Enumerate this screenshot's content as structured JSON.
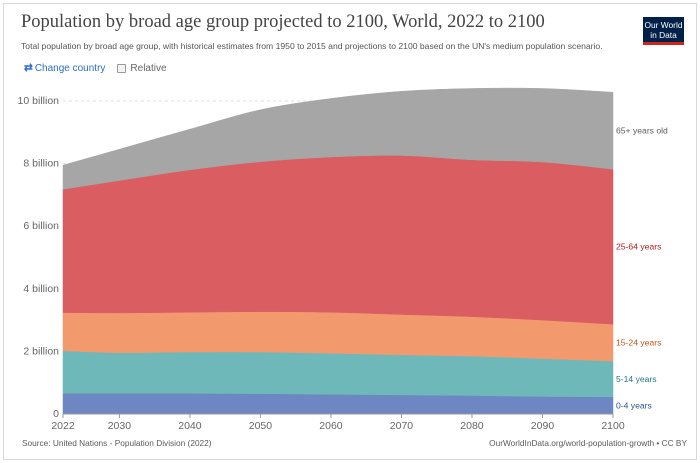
{
  "header": {
    "title": "Population by broad age group projected to 2100, World, 2022 to 2100",
    "subtitle": "Total population by broad age group, with historical estimates from 1950 to 2015 and projections to 2100 based on the UN's medium population scenario.",
    "logo_line1": "Our World",
    "logo_line2": "in Data"
  },
  "controls": {
    "change_country_label": "Change country",
    "relative_label": "Relative"
  },
  "footer": {
    "source": "Source: United Nations - Population Division (2022)",
    "link": "OurWorldInData.org/world-population-growth • CC BY"
  },
  "colors": {
    "0-4": "#6d87c2",
    "5-14": "#6fb8ba",
    "15-24": "#f29a6e",
    "25-64": "#d95d61",
    "65+": "#a6a6a6",
    "label_0_4": "#2d4e98",
    "label_5_14": "#20787f",
    "label_15_24": "#c4551a",
    "label_25_64": "#b11c1f",
    "label_65": "#5b5b5b"
  },
  "chart_data": {
    "type": "area",
    "stacked": true,
    "x": [
      2022,
      2030,
      2040,
      2050,
      2060,
      2070,
      2080,
      2090,
      2100
    ],
    "xticks": [
      2022,
      2030,
      2040,
      2050,
      2060,
      2070,
      2080,
      2090,
      2100
    ],
    "xtick_labels": [
      "2022",
      "2030",
      "2040",
      "2050",
      "2060",
      "2070",
      "2080",
      "2090",
      "2100"
    ],
    "yticks": [
      0,
      2,
      4,
      6,
      8,
      10
    ],
    "ytick_labels": [
      "0",
      "2 billion",
      "4 billion",
      "6 billion",
      "8 billion",
      "10 billion"
    ],
    "ylim": [
      0,
      10.3
    ],
    "ylabel_unit": "billion",
    "series": [
      {
        "name": "0-4 years",
        "key": "0-4",
        "values": [
          0.66,
          0.66,
          0.66,
          0.65,
          0.63,
          0.61,
          0.59,
          0.56,
          0.55
        ]
      },
      {
        "name": "5-14 years",
        "key": "5-14",
        "values": [
          1.36,
          1.3,
          1.32,
          1.33,
          1.31,
          1.28,
          1.26,
          1.21,
          1.14
        ]
      },
      {
        "name": "15-24 years",
        "key": "15-24",
        "values": [
          1.22,
          1.27,
          1.27,
          1.29,
          1.31,
          1.29,
          1.26,
          1.23,
          1.18
        ]
      },
      {
        "name": "25-64 years",
        "key": "25-64",
        "values": [
          3.94,
          4.23,
          4.55,
          4.79,
          4.96,
          5.08,
          5.01,
          5.05,
          4.95
        ]
      },
      {
        "name": "65+ years old",
        "key": "65+",
        "values": [
          0.77,
          1.0,
          1.3,
          1.66,
          1.87,
          2.05,
          2.28,
          2.35,
          2.46
        ]
      }
    ],
    "grid": true,
    "legend": "right inline labels"
  }
}
